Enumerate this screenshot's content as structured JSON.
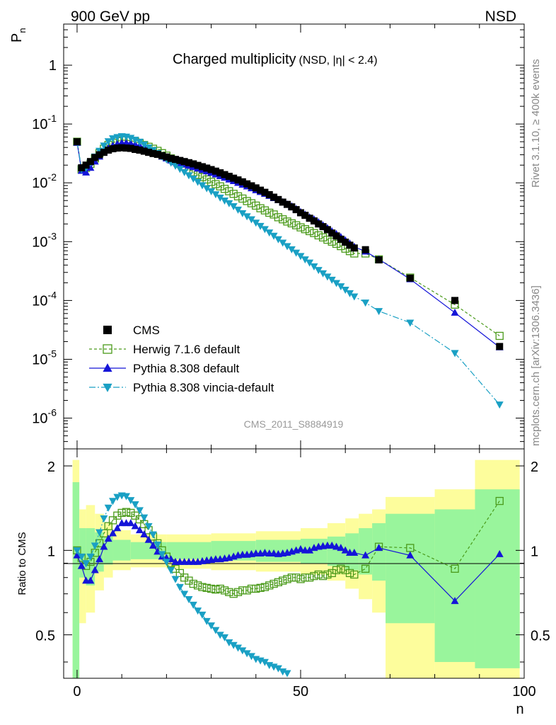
{
  "header": {
    "left": "900 GeV pp",
    "right": "NSD"
  },
  "side_texts": {
    "rivet": "Rivet 3.1.10, ≥ 400k events",
    "mcplots": "mcplots.cern.ch [arXiv:1306.3436]"
  },
  "watermark": "CMS_2011_S8884919",
  "chart_data": {
    "type": "scatter",
    "title": "Charged multiplicity",
    "title_suffix": "(NSD, |η| < 2.4)",
    "ylabel": "P",
    "ylabel_sub": "n",
    "xlabel": "n",
    "ratio_ylabel": "Ratio to CMS",
    "xlim": [
      -3,
      100
    ],
    "ylim": [
      3e-07,
      5
    ],
    "yscale": "log",
    "x_ticks": [
      "0",
      "50",
      "100"
    ],
    "y_ticks": [
      {
        "base": "10",
        "exp": "-6"
      },
      {
        "base": "10",
        "exp": "-5"
      },
      {
        "base": "10",
        "exp": "-4"
      },
      {
        "base": "10",
        "exp": "-3"
      },
      {
        "base": "10",
        "exp": "-2"
      },
      {
        "base": "10",
        "exp": "-1"
      },
      {
        "base": "1",
        "exp": ""
      }
    ],
    "ratio_ylim": [
      0.35,
      2.3
    ],
    "ratio_ticks": [
      "0.5",
      "1",
      "2"
    ],
    "legend_position": "bottom-left",
    "legend": [
      "CMS",
      "Herwig 7.1.6 default",
      "Pythia 8.308 default",
      "Pythia 8.308 vincia-default"
    ],
    "colors": {
      "cms": "#000000",
      "herwig": "#4a9a1a",
      "pythia": "#1515d8",
      "vincia": "#1aa0c4",
      "band_inner": "#99f59c",
      "band_outer": "#fdfd9c"
    },
    "series": [
      {
        "name": "CMS",
        "marker": "square",
        "x": [
          0,
          1,
          2,
          3,
          4,
          5,
          6,
          7,
          8,
          9,
          10,
          11,
          12,
          13,
          14,
          15,
          16,
          17,
          18,
          19,
          20,
          21,
          22,
          23,
          24,
          25,
          26,
          27,
          28,
          29,
          30,
          31,
          32,
          33,
          34,
          35,
          36,
          37,
          38,
          39,
          40,
          41,
          42,
          43,
          44,
          45,
          46,
          47,
          48,
          49,
          50,
          51,
          52,
          53,
          54,
          55,
          56,
          57,
          58,
          59,
          60,
          61,
          62,
          64.5,
          67.5,
          74.5,
          84.5,
          94.5
        ],
        "y": [
          0.05,
          0.018,
          0.02,
          0.023,
          0.027,
          0.03,
          0.033,
          0.036,
          0.038,
          0.039,
          0.0395,
          0.039,
          0.0385,
          0.037,
          0.036,
          0.0345,
          0.033,
          0.0315,
          0.0305,
          0.029,
          0.0275,
          0.026,
          0.025,
          0.024,
          0.023,
          0.022,
          0.021,
          0.0198,
          0.0188,
          0.0178,
          0.0168,
          0.0158,
          0.0148,
          0.0138,
          0.0129,
          0.012,
          0.0112,
          0.0104,
          0.0096,
          0.0089,
          0.0082,
          0.0075,
          0.0069,
          0.0063,
          0.0057,
          0.0052,
          0.0047,
          0.0043,
          0.0039,
          0.0035,
          0.0031,
          0.0028,
          0.0025,
          0.00225,
          0.002,
          0.0018,
          0.0016,
          0.0014,
          0.00125,
          0.0011,
          0.00098,
          0.00087,
          0.00078,
          0.00073,
          0.00049,
          0.00024,
          0.0001,
          1.65e-05
        ]
      },
      {
        "name": "Herwig 7.1.6 default",
        "marker": "open-square",
        "x": [
          0,
          1,
          2,
          3,
          4,
          5,
          6,
          7,
          8,
          9,
          10,
          11,
          12,
          13,
          14,
          15,
          16,
          17,
          18,
          19,
          20,
          21,
          22,
          23,
          24,
          25,
          26,
          27,
          28,
          29,
          30,
          31,
          32,
          33,
          34,
          35,
          36,
          37,
          38,
          39,
          40,
          41,
          42,
          43,
          44,
          45,
          46,
          47,
          48,
          49,
          50,
          51,
          52,
          53,
          54,
          55,
          56,
          57,
          58,
          59,
          60,
          61,
          62,
          64.5,
          67.5,
          74.5,
          84.5,
          94.5
        ],
        "y": [
          0.05,
          0.017,
          0.018,
          0.021,
          0.026,
          0.032,
          0.038,
          0.044,
          0.048,
          0.051,
          0.053,
          0.053,
          0.052,
          0.05,
          0.047,
          0.044,
          0.041,
          0.038,
          0.035,
          0.032,
          0.029,
          0.026,
          0.0236,
          0.0212,
          0.019,
          0.017,
          0.0152,
          0.0137,
          0.0125,
          0.0114,
          0.0104,
          0.0095,
          0.0087,
          0.0079,
          0.0072,
          0.0065,
          0.0059,
          0.0054,
          0.0049,
          0.0045,
          0.0041,
          0.0037,
          0.0034,
          0.0031,
          0.0029,
          0.0026,
          0.0024,
          0.0022,
          0.00205,
          0.0019,
          0.00175,
          0.00163,
          0.00151,
          0.0014,
          0.00128,
          0.00118,
          0.00108,
          0.001,
          0.00092,
          0.00084,
          0.00076,
          0.00069,
          0.00063,
          0.00063,
          0.0005,
          0.000245,
          8.5e-05,
          2.5e-05
        ]
      },
      {
        "name": "Pythia 8.308 default",
        "marker": "triangle-up",
        "x": [
          0,
          1,
          2,
          3,
          4,
          5,
          6,
          7,
          8,
          9,
          10,
          11,
          12,
          13,
          14,
          15,
          16,
          17,
          18,
          19,
          20,
          21,
          22,
          23,
          24,
          25,
          26,
          27,
          28,
          29,
          30,
          31,
          32,
          33,
          34,
          35,
          36,
          37,
          38,
          39,
          40,
          41,
          42,
          43,
          44,
          45,
          46,
          47,
          48,
          49,
          50,
          51,
          52,
          53,
          54,
          55,
          56,
          57,
          58,
          59,
          60,
          61,
          62,
          64.5,
          67.5,
          74.5,
          84.5,
          94.5
        ],
        "y": [
          0.048,
          0.016,
          0.015,
          0.018,
          0.023,
          0.028,
          0.034,
          0.039,
          0.043,
          0.046,
          0.048,
          0.048,
          0.047,
          0.045,
          0.043,
          0.04,
          0.037,
          0.034,
          0.031,
          0.028,
          0.026,
          0.024,
          0.0225,
          0.0215,
          0.0205,
          0.0195,
          0.0185,
          0.0175,
          0.0166,
          0.0157,
          0.0148,
          0.0139,
          0.013,
          0.0122,
          0.0114,
          0.0107,
          0.01,
          0.0093,
          0.0087,
          0.0081,
          0.0075,
          0.007,
          0.0065,
          0.006,
          0.0055,
          0.0051,
          0.0047,
          0.0043,
          0.004,
          0.0036,
          0.0032,
          0.0029,
          0.0026,
          0.0024,
          0.00215,
          0.0019,
          0.0017,
          0.0015,
          0.00135,
          0.0012,
          0.00106,
          0.00093,
          0.00082,
          0.00068,
          0.0005,
          0.00023,
          6.2e-05,
          1.6e-05
        ]
      },
      {
        "name": "Pythia 8.308 vincia-default",
        "marker": "triangle-down",
        "x": [
          0,
          1,
          2,
          3,
          4,
          5,
          6,
          7,
          8,
          9,
          10,
          11,
          12,
          13,
          14,
          15,
          16,
          17,
          18,
          19,
          20,
          21,
          22,
          23,
          24,
          25,
          26,
          27,
          28,
          29,
          30,
          31,
          32,
          33,
          34,
          35,
          36,
          37,
          38,
          39,
          40,
          41,
          42,
          43,
          44,
          45,
          46,
          47,
          48,
          49,
          50,
          51,
          52,
          53,
          54,
          55,
          56,
          57,
          58,
          59,
          60,
          61,
          62,
          64.5,
          67.5,
          74.5,
          84.5,
          94.5
        ],
        "y": [
          0.05,
          0.017,
          0.018,
          0.022,
          0.028,
          0.035,
          0.043,
          0.051,
          0.057,
          0.06,
          0.062,
          0.061,
          0.058,
          0.054,
          0.05,
          0.045,
          0.04,
          0.036,
          0.032,
          0.028,
          0.025,
          0.022,
          0.0195,
          0.0172,
          0.0152,
          0.0134,
          0.0118,
          0.0104,
          0.0091,
          0.0081,
          0.0072,
          0.0064,
          0.0056,
          0.005,
          0.0045,
          0.004,
          0.0035,
          0.00305,
          0.0027,
          0.0024,
          0.0021,
          0.00185,
          0.00163,
          0.00143,
          0.00126,
          0.0011,
          0.00096,
          0.00084,
          0.00074,
          0.00065,
          0.00057,
          0.0005,
          0.00044,
          0.00038,
          0.00033,
          0.00029,
          0.000255,
          0.000225,
          0.000198,
          0.000174,
          0.000152,
          0.000133,
          0.000117,
          9.2e-05,
          6.6e-05,
          4.2e-05,
          1.28e-05,
          1.7e-06
        ]
      }
    ],
    "ratio_series": [
      {
        "name": "Herwig 7.1.6 default",
        "x": [
          0,
          1,
          2,
          3,
          4,
          5,
          6,
          7,
          8,
          9,
          10,
          11,
          12,
          13,
          14,
          15,
          16,
          17,
          18,
          19,
          20,
          21,
          22,
          23,
          24,
          25,
          26,
          27,
          28,
          29,
          30,
          31,
          32,
          33,
          34,
          35,
          36,
          37,
          38,
          39,
          40,
          41,
          42,
          43,
          44,
          45,
          46,
          47,
          48,
          49,
          50,
          51,
          52,
          53,
          54,
          55,
          56,
          57,
          58,
          59,
          60,
          61,
          62,
          64.5,
          67.5,
          74.5,
          84.5,
          94.5
        ],
        "y": [
          1.0,
          0.94,
          0.88,
          0.91,
          0.98,
          1.06,
          1.15,
          1.22,
          1.28,
          1.33,
          1.36,
          1.37,
          1.36,
          1.33,
          1.29,
          1.24,
          1.18,
          1.12,
          1.06,
          1.0,
          0.95,
          0.9,
          0.86,
          0.83,
          0.8,
          0.78,
          0.76,
          0.75,
          0.74,
          0.735,
          0.73,
          0.725,
          0.73,
          0.72,
          0.71,
          0.7,
          0.71,
          0.72,
          0.72,
          0.73,
          0.73,
          0.735,
          0.74,
          0.75,
          0.76,
          0.77,
          0.78,
          0.79,
          0.8,
          0.8,
          0.79,
          0.8,
          0.8,
          0.81,
          0.82,
          0.81,
          0.82,
          0.83,
          0.85,
          0.86,
          0.85,
          0.83,
          0.82,
          0.86,
          1.03,
          1.02,
          0.86,
          1.5
        ]
      },
      {
        "name": "Pythia 8.308 default",
        "x": [
          0,
          1,
          2,
          3,
          4,
          5,
          6,
          7,
          8,
          9,
          10,
          11,
          12,
          13,
          14,
          15,
          16,
          17,
          18,
          19,
          20,
          21,
          22,
          23,
          24,
          25,
          26,
          27,
          28,
          29,
          30,
          31,
          32,
          33,
          34,
          35,
          36,
          37,
          38,
          39,
          40,
          41,
          42,
          43,
          44,
          45,
          46,
          47,
          48,
          49,
          50,
          51,
          52,
          53,
          54,
          55,
          56,
          57,
          58,
          59,
          60,
          61,
          62,
          64.5,
          67.5,
          74.5,
          84.5,
          94.5
        ],
        "y": [
          0.96,
          0.88,
          0.78,
          0.78,
          0.85,
          0.93,
          1.03,
          1.1,
          1.15,
          1.2,
          1.25,
          1.25,
          1.25,
          1.22,
          1.18,
          1.14,
          1.09,
          1.04,
          0.99,
          0.95,
          0.94,
          0.93,
          0.91,
          0.91,
          0.91,
          0.91,
          0.91,
          0.91,
          0.915,
          0.92,
          0.925,
          0.93,
          0.93,
          0.935,
          0.94,
          0.95,
          0.96,
          0.965,
          0.965,
          0.97,
          0.975,
          0.975,
          0.98,
          0.975,
          0.975,
          0.97,
          0.975,
          0.98,
          0.99,
          1.0,
          1.01,
          1.0,
          1.0,
          1.02,
          1.03,
          1.035,
          1.04,
          1.04,
          1.03,
          1.02,
          1.0,
          0.98,
          0.98,
          0.96,
          1.02,
          0.96,
          0.66,
          0.97
        ]
      },
      {
        "name": "Pythia 8.308 vincia-default",
        "x": [
          0,
          1,
          2,
          3,
          4,
          5,
          6,
          7,
          8,
          9,
          10,
          11,
          12,
          13,
          14,
          15,
          16,
          17,
          18,
          19,
          20,
          21,
          22,
          23,
          24,
          25,
          26,
          27,
          28,
          29,
          30,
          31,
          32,
          33,
          34,
          35,
          36,
          37,
          38,
          39,
          40,
          41,
          42,
          43,
          44,
          45,
          46,
          47
        ],
        "y": [
          1.0,
          0.95,
          0.9,
          0.95,
          1.04,
          1.16,
          1.3,
          1.42,
          1.5,
          1.55,
          1.57,
          1.56,
          1.51,
          1.46,
          1.39,
          1.31,
          1.22,
          1.14,
          1.05,
          0.97,
          0.91,
          0.85,
          0.79,
          0.74,
          0.7,
          0.67,
          0.64,
          0.61,
          0.59,
          0.56,
          0.54,
          0.52,
          0.5,
          0.49,
          0.47,
          0.46,
          0.45,
          0.44,
          0.43,
          0.42,
          0.41,
          0.405,
          0.4,
          0.39,
          0.385,
          0.38,
          0.37,
          0.365
        ]
      }
    ],
    "ratio_bands": [
      {
        "x0": -1,
        "x1": 0.5,
        "lo": 0.3,
        "hi": 2.1,
        "ilo": 0.3,
        "ihi": 1.75
      },
      {
        "x0": 0.5,
        "x1": 2,
        "lo": 0.55,
        "hi": 1.4,
        "ilo": 0.8,
        "ihi": 1.2
      },
      {
        "x0": 2,
        "x1": 4,
        "lo": 0.6,
        "hi": 1.45,
        "ilo": 0.75,
        "ihi": 1.2
      },
      {
        "x0": 4,
        "x1": 6,
        "lo": 0.72,
        "hi": 1.35,
        "ilo": 0.84,
        "ihi": 1.16
      },
      {
        "x0": 6,
        "x1": 8,
        "lo": 0.8,
        "hi": 1.25,
        "ilo": 0.89,
        "ihi": 1.12
      },
      {
        "x0": 8,
        "x1": 12,
        "lo": 0.85,
        "hi": 1.18,
        "ilo": 0.92,
        "ihi": 1.09
      },
      {
        "x0": 12,
        "x1": 20,
        "lo": 0.87,
        "hi": 1.14,
        "ilo": 0.93,
        "ihi": 1.07
      },
      {
        "x0": 20,
        "x1": 30,
        "lo": 0.86,
        "hi": 1.14,
        "ilo": 0.93,
        "ihi": 1.07
      },
      {
        "x0": 30,
        "x1": 40,
        "lo": 0.85,
        "hi": 1.15,
        "ilo": 0.92,
        "ihi": 1.08
      },
      {
        "x0": 40,
        "x1": 50,
        "lo": 0.84,
        "hi": 1.17,
        "ilo": 0.91,
        "ihi": 1.09
      },
      {
        "x0": 50,
        "x1": 56,
        "lo": 0.82,
        "hi": 1.2,
        "ilo": 0.9,
        "ihi": 1.1
      },
      {
        "x0": 56,
        "x1": 60,
        "lo": 0.78,
        "hi": 1.25,
        "ilo": 0.88,
        "ihi": 1.12
      },
      {
        "x0": 60,
        "x1": 63,
        "lo": 0.73,
        "hi": 1.3,
        "ilo": 0.85,
        "ihi": 1.15
      },
      {
        "x0": 63,
        "x1": 66,
        "lo": 0.67,
        "hi": 1.35,
        "ilo": 0.82,
        "ihi": 1.2
      },
      {
        "x0": 66,
        "x1": 69,
        "lo": 0.6,
        "hi": 1.4,
        "ilo": 0.78,
        "ihi": 1.25
      },
      {
        "x0": 69,
        "x1": 80,
        "lo": 0.3,
        "hi": 1.55,
        "ilo": 0.55,
        "ihi": 1.35
      },
      {
        "x0": 80,
        "x1": 89,
        "lo": 0.3,
        "hi": 1.65,
        "ilo": 0.4,
        "ihi": 1.4
      },
      {
        "x0": 89,
        "x1": 99,
        "lo": 0.3,
        "hi": 2.1,
        "ilo": 0.38,
        "ihi": 1.65
      }
    ]
  }
}
